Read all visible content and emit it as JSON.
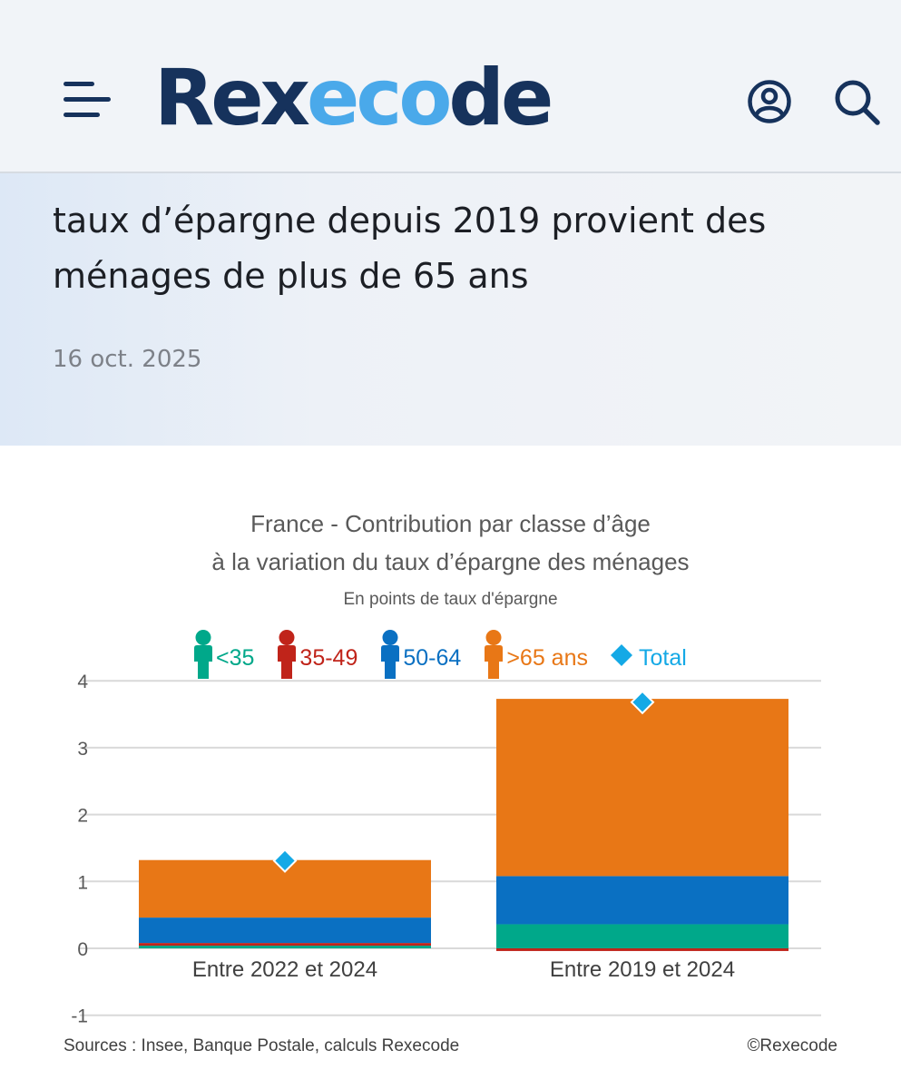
{
  "header": {
    "logo_part1": "Rex",
    "logo_part2": "eco",
    "logo_part3": "de",
    "icons": [
      "menu-icon",
      "user-icon",
      "search-icon"
    ],
    "colors": {
      "navy": "#16325c",
      "accent": "#4aa9ea"
    }
  },
  "article": {
    "headline_line1": "taux d’épargne depuis 2019 provient des",
    "headline_line2": "ménages de plus de 65 ans",
    "date": "16 oct. 2025"
  },
  "chart": {
    "title_line1": "France - Contribution par classe d’âge",
    "title_line2": "à la variation du taux d’épargne des ménages",
    "subtitle": "En points de taux d'épargne",
    "sources": "Sources : Insee, Banque Postale, calculs Rexecode",
    "copyright": "©Rexecode"
  },
  "chart_data": {
    "type": "bar",
    "stacked": true,
    "title": "France - Contribution par classe d’âge à la variation du taux d’épargne des ménages",
    "subtitle": "En points de taux d'épargne",
    "categories": [
      "Entre 2022 et 2024",
      "Entre 2019 et 2024"
    ],
    "ylim": [
      -1,
      4
    ],
    "yticks": [
      "4",
      "3",
      "2",
      "1",
      "0",
      "-1"
    ],
    "grid": true,
    "legend_position": "top",
    "series": [
      {
        "name": "<35",
        "values": [
          0.04,
          0.36
        ],
        "color": "#00a88a"
      },
      {
        "name": "35-49",
        "values": [
          0.04,
          -0.04
        ],
        "color": "#c0241a"
      },
      {
        "name": "50-64",
        "values": [
          0.38,
          0.72
        ],
        "color": "#0a70c2"
      },
      {
        "name": ">65 ans",
        "values": [
          0.86,
          2.65
        ],
        "color": "#e87716"
      }
    ],
    "total": {
      "name": "Total",
      "values": [
        1.31,
        3.68
      ],
      "color": "#14a9e6",
      "marker": "diamond"
    }
  }
}
